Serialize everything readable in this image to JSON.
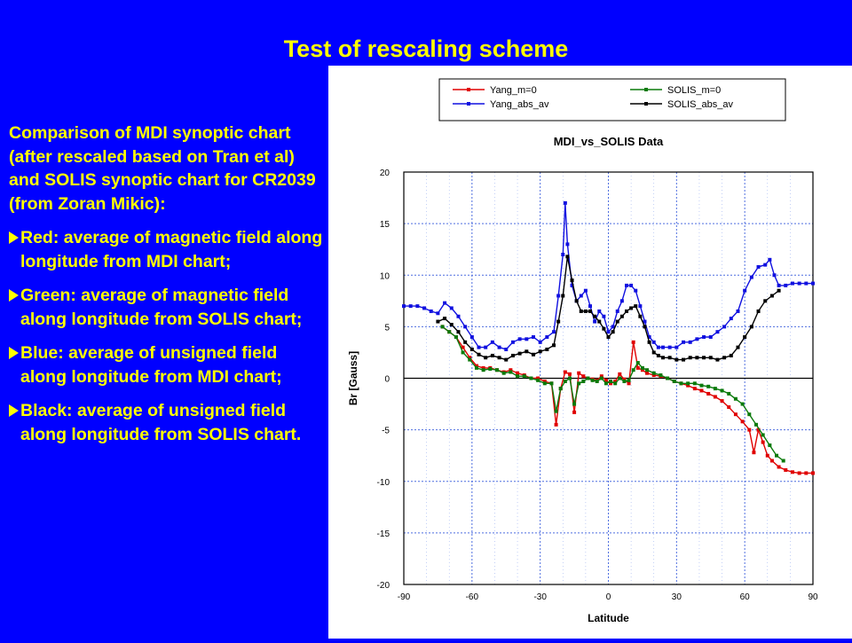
{
  "slide": {
    "title": "Test of rescaling scheme",
    "intro": "Comparison of MDI synoptic chart (after rescaled based on Tran et al) and SOLIS synoptic chart for CR2039 (from Zoran Mikic):",
    "bullets": [
      "Red: average of magnetic field along longitude from MDI chart;",
      "Green: average of magnetic field along longitude from SOLIS chart;",
      "Blue: average of unsigned field along longitude from MDI chart;",
      "Black: average of unsigned field along longitude from SOLIS chart."
    ]
  },
  "chart_data": {
    "type": "line",
    "title": "MDI_vs_SOLIS Data",
    "xlabel": "Latitude",
    "ylabel": "Br [Gauss]",
    "xlim": [
      -90,
      90
    ],
    "ylim": [
      -20,
      20
    ],
    "xticks": [
      -90,
      -60,
      -30,
      0,
      30,
      60,
      90
    ],
    "yticks": [
      -20,
      -15,
      -10,
      -5,
      0,
      5,
      10,
      15,
      20
    ],
    "grid": true,
    "legend_position": "top",
    "series": [
      {
        "name": "Yang_m=0",
        "color": "#e00000",
        "x": [
          -73,
          -70,
          -67,
          -64,
          -61,
          -58,
          -55,
          -52,
          -49,
          -46,
          -43,
          -40,
          -37,
          -34,
          -31,
          -28,
          -25,
          -23,
          -21,
          -19,
          -17,
          -15,
          -13,
          -11,
          -9,
          -7,
          -5,
          -3,
          -1,
          1,
          3,
          5,
          7,
          9,
          11,
          13,
          15,
          17,
          20,
          23,
          26,
          29,
          32,
          35,
          38,
          41,
          44,
          47,
          50,
          53,
          56,
          59,
          62,
          64,
          66,
          68,
          70,
          72,
          75,
          78,
          81,
          84,
          87,
          90
        ],
        "y": [
          5,
          4.5,
          4,
          3,
          2,
          1.2,
          1,
          1,
          0.8,
          0.6,
          0.8,
          0.5,
          0.3,
          0,
          0,
          -0.3,
          -0.5,
          -4.5,
          -1,
          0.6,
          0.4,
          -3.3,
          0.5,
          0.2,
          0,
          -0.1,
          -0.2,
          0.2,
          -0.2,
          -0.5,
          -0.3,
          0.4,
          -0.1,
          -0.5,
          3.5,
          1,
          0.8,
          0.5,
          0.3,
          0.2,
          0,
          -0.3,
          -0.5,
          -0.7,
          -1,
          -1.2,
          -1.5,
          -1.8,
          -2.2,
          -2.8,
          -3.5,
          -4.2,
          -5,
          -7.2,
          -5,
          -6.2,
          -7.5,
          -8,
          -8.6,
          -8.9,
          -9.1,
          -9.2,
          -9.2,
          -9.2
        ]
      },
      {
        "name": "SOLIS_m=0",
        "color": "#0a7a0a",
        "x": [
          -73,
          -70,
          -67,
          -64,
          -61,
          -58,
          -55,
          -52,
          -49,
          -46,
          -43,
          -40,
          -37,
          -34,
          -31,
          -28,
          -25,
          -23,
          -21,
          -19,
          -17,
          -15,
          -13,
          -11,
          -9,
          -7,
          -5,
          -3,
          -1,
          1,
          3,
          5,
          7,
          9,
          11,
          13,
          15,
          17,
          20,
          23,
          26,
          29,
          32,
          35,
          38,
          41,
          44,
          47,
          50,
          53,
          56,
          59,
          62,
          65,
          68,
          71,
          74,
          77
        ],
        "y": [
          5,
          4.5,
          4,
          2.5,
          1.8,
          1,
          0.8,
          0.9,
          0.8,
          0.5,
          0.6,
          0.2,
          0.2,
          0,
          -0.2,
          -0.5,
          -0.5,
          -3.2,
          -1,
          -0.3,
          0,
          -2.5,
          -0.5,
          -0.3,
          0,
          -0.2,
          -0.3,
          0,
          -0.5,
          -0.3,
          -0.5,
          0,
          -0.3,
          -0.2,
          0.8,
          1.5,
          1,
          0.8,
          0.5,
          0.3,
          0,
          -0.3,
          -0.5,
          -0.5,
          -0.5,
          -0.7,
          -0.8,
          -1,
          -1.2,
          -1.5,
          -2,
          -2.5,
          -3.5,
          -4.5,
          -5.5,
          -6.5,
          -7.5,
          -8
        ]
      },
      {
        "name": "Yang_abs_av",
        "color": "#1010e0",
        "x": [
          -90,
          -87,
          -84,
          -81,
          -78,
          -75,
          -72,
          -69,
          -66,
          -63,
          -60,
          -57,
          -54,
          -51,
          -48,
          -45,
          -42,
          -39,
          -36,
          -33,
          -30,
          -27,
          -24,
          -22,
          -20,
          -19,
          -18,
          -16,
          -14,
          -12,
          -10,
          -8,
          -6,
          -4,
          -2,
          0,
          2,
          4,
          6,
          8,
          10,
          12,
          14,
          16,
          18,
          20,
          22,
          24,
          27,
          30,
          33,
          36,
          39,
          42,
          45,
          48,
          51,
          54,
          57,
          60,
          63,
          66,
          69,
          71,
          73,
          75,
          78,
          81,
          84,
          87,
          90
        ],
        "y": [
          7,
          7,
          7,
          6.8,
          6.5,
          6.3,
          7.3,
          6.8,
          6,
          5,
          4,
          3,
          3,
          3.5,
          3,
          2.8,
          3.5,
          3.8,
          3.8,
          4,
          3.5,
          4,
          4.5,
          8,
          12,
          17,
          13,
          9,
          7.5,
          8,
          8.5,
          7,
          5.5,
          6.5,
          6,
          4.5,
          5,
          6.5,
          7.5,
          9,
          9,
          8.5,
          7,
          5.5,
          4,
          3.5,
          3,
          3,
          3,
          3,
          3.5,
          3.5,
          3.8,
          4,
          4,
          4.5,
          5,
          5.8,
          6.5,
          8.5,
          9.8,
          10.8,
          11,
          11.5,
          10,
          9,
          9,
          9.2,
          9.2,
          9.2,
          9.2
        ]
      },
      {
        "name": "SOLIS_abs_av",
        "color": "#000000",
        "x": [
          -75,
          -72,
          -69,
          -66,
          -63,
          -60,
          -57,
          -54,
          -51,
          -48,
          -45,
          -42,
          -39,
          -36,
          -33,
          -30,
          -27,
          -24,
          -22,
          -20,
          -18,
          -16,
          -14,
          -12,
          -10,
          -8,
          -6,
          -4,
          -2,
          0,
          2,
          4,
          6,
          8,
          10,
          12,
          14,
          16,
          18,
          20,
          22,
          24,
          27,
          30,
          33,
          36,
          39,
          42,
          45,
          48,
          51,
          54,
          57,
          60,
          63,
          66,
          69,
          72,
          75
        ],
        "y": [
          5.5,
          5.8,
          5.2,
          4.5,
          3.5,
          2.8,
          2.3,
          2,
          2.2,
          2,
          1.8,
          2.2,
          2.4,
          2.6,
          2.3,
          2.6,
          2.8,
          3.2,
          5.5,
          8,
          11.8,
          9.5,
          7.5,
          6.5,
          6.5,
          6.5,
          6,
          5.5,
          4.8,
          4,
          4.5,
          5.5,
          6,
          6.5,
          6.8,
          7,
          6,
          5,
          3.5,
          2.5,
          2.2,
          2,
          2,
          1.8,
          1.8,
          2,
          2,
          2,
          2,
          1.8,
          2,
          2.2,
          3,
          4,
          5,
          6.5,
          7.5,
          8,
          8.5
        ]
      }
    ]
  }
}
